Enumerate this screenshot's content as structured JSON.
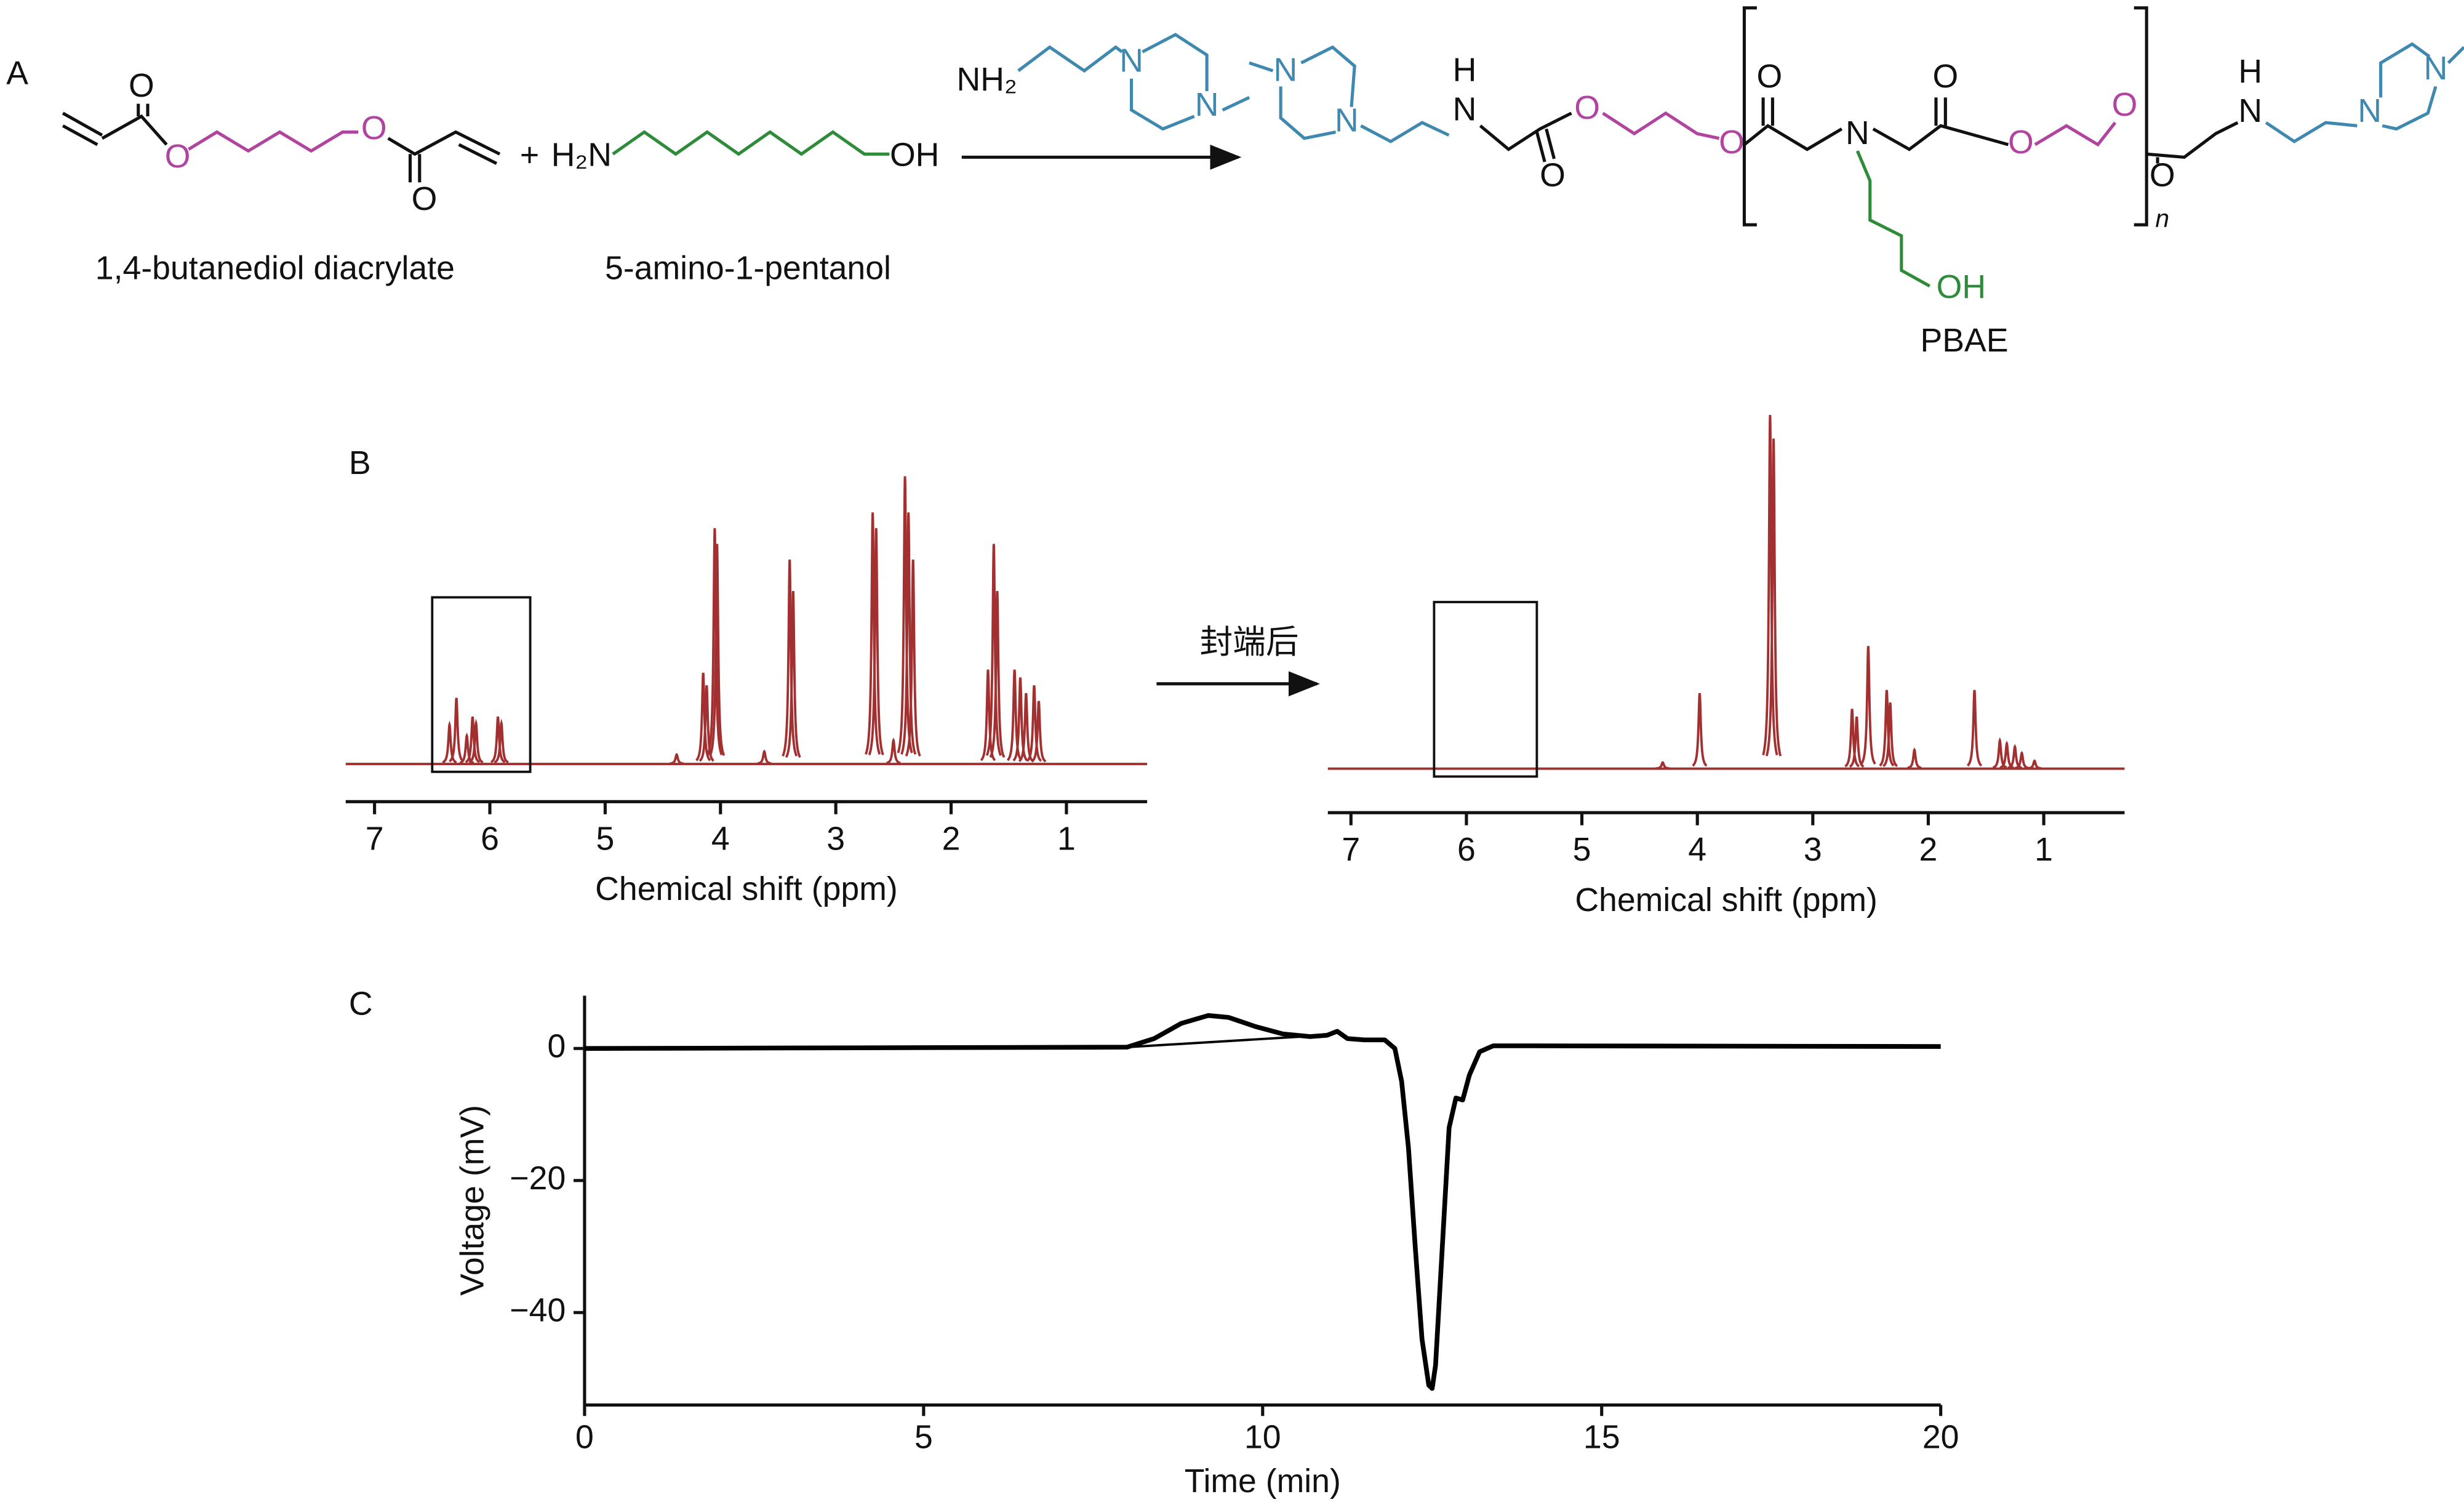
{
  "panel_labels": [
    "A",
    "B",
    "C"
  ],
  "scheme": {
    "labels": [
      "O",
      "O",
      "O",
      "O",
      "+",
      "H₂N",
      "OH",
      "NH₂",
      "N",
      "N",
      "N",
      "N",
      "H",
      "N",
      "O",
      "O",
      "O",
      "O",
      "N",
      "O",
      "O",
      "O",
      "n",
      "O",
      "H",
      "N",
      "N",
      "N",
      "OH"
    ],
    "reactants": [
      "1,4-butanediol diacrylate",
      "5-amino-1-pentanol"
    ],
    "product": "PBAE"
  },
  "annotations": [
    "封端后"
  ],
  "chart_data": [
    {
      "type": "spectrum",
      "xlabel": "Chemical shift (ppm)",
      "xlim": [
        7.25,
        0.3
      ],
      "xticks": [
        7,
        6,
        5,
        4,
        3,
        2,
        1
      ],
      "color": "#a33030",
      "highlight": [
        6.5,
        5.65
      ],
      "x": [
        6.35,
        6.29,
        6.2,
        6.15,
        6.12,
        5.93,
        5.9,
        4.38,
        4.15,
        4.12,
        4.05,
        4.03,
        3.62,
        3.4,
        3.37,
        2.68,
        2.65,
        2.5,
        2.4,
        2.37,
        2.33,
        1.68,
        1.63,
        1.6,
        1.45,
        1.4,
        1.35,
        1.28,
        1.24
      ],
      "values": [
        25,
        42,
        18,
        30,
        26,
        30,
        26,
        6,
        58,
        50,
        150,
        140,
        8,
        130,
        110,
        160,
        150,
        15,
        183,
        160,
        130,
        60,
        140,
        110,
        60,
        55,
        45,
        50,
        40
      ]
    },
    {
      "type": "spectrum",
      "xlabel": "Chemical shift (ppm)",
      "xlim": [
        7.2,
        0.3
      ],
      "xticks": [
        7,
        6,
        5,
        4,
        3,
        2,
        1
      ],
      "color": "#a33030",
      "highlight": [
        6.28,
        5.39
      ],
      "x": [
        4.3,
        3.98,
        3.37,
        3.34,
        2.66,
        2.62,
        2.52,
        2.36,
        2.33,
        2.12,
        1.6,
        1.38,
        1.32,
        1.25,
        1.19,
        1.08
      ],
      "values": [
        4,
        48,
        225,
        210,
        38,
        33,
        78,
        50,
        42,
        12,
        50,
        18,
        16,
        14,
        10,
        5
      ]
    },
    {
      "type": "line",
      "xlabel": "Time (min)",
      "ylabel": "Voltage (mV)",
      "xlim": [
        0,
        20
      ],
      "ylim": [
        -54,
        8
      ],
      "xticks": [
        0,
        5,
        10,
        15,
        20
      ],
      "yticks": [
        {
          "value": -40,
          "label": "−40"
        },
        {
          "value": -20,
          "label": "−20"
        },
        0
      ],
      "series": [
        {
          "color": "#000000",
          "x": [
            0,
            8,
            8.4,
            8.8,
            9.2,
            9.5,
            9.9,
            10.3,
            10.7,
            10.95,
            11.1,
            11.25,
            11.5,
            11.8,
            11.95,
            12.05,
            12.15,
            12.25,
            12.35,
            12.45,
            12.5,
            12.55,
            12.65,
            12.75,
            12.85,
            12.95,
            13.05,
            13.2,
            13.4,
            14,
            20
          ],
          "values": [
            0,
            0.2,
            1.5,
            3.8,
            5,
            4.7,
            3.3,
            2.2,
            1.8,
            2.0,
            2.6,
            1.5,
            1.3,
            1.3,
            0,
            -5,
            -15,
            -30,
            -44,
            -51,
            -51.5,
            -48,
            -30,
            -12,
            -7.5,
            -7.8,
            -4,
            -0.5,
            0.4,
            0.4,
            0.3
          ]
        },
        {
          "color": "#000000",
          "x": [
            8,
            10.9
          ],
          "values": [
            0.2,
            2.0
          ]
        }
      ]
    }
  ]
}
